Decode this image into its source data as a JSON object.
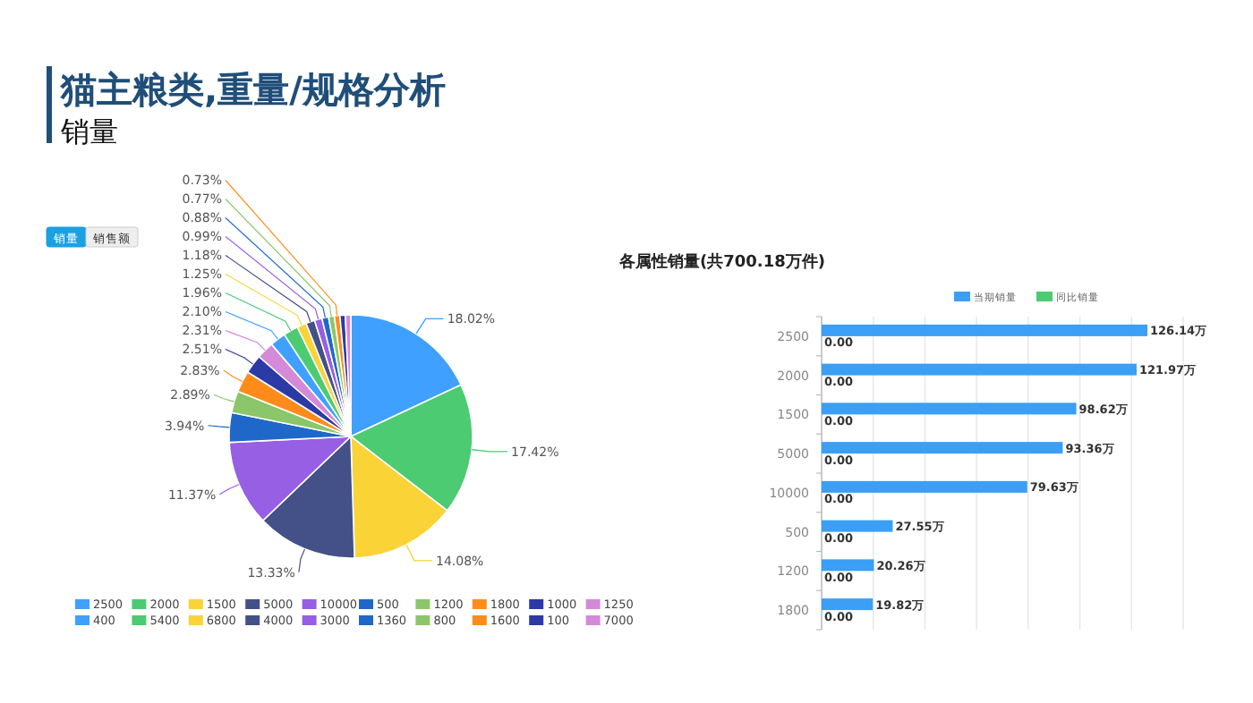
{
  "chart_data": [
    {
      "type": "pie",
      "title": "猫主粮类,重量/规格分析",
      "subtitle": "销量",
      "annotations": [
        "销量",
        "销售额"
      ],
      "legend": "bottom",
      "categories": [
        "2500",
        "2000",
        "1500",
        "5000",
        "10000",
        "500",
        "1200",
        "1800",
        "1000",
        "1250",
        "400",
        "5400",
        "6800",
        "4000",
        "3000",
        "1360",
        "800",
        "1600",
        "100",
        "7000"
      ],
      "values": [
        18.02,
        17.42,
        14.08,
        13.33,
        11.37,
        3.94,
        2.89,
        2.83,
        2.51,
        2.31,
        2.1,
        1.96,
        1.25,
        1.18,
        0.99,
        0.88,
        0.77,
        0.73,
        0.72,
        0.72
      ],
      "value_labels": [
        "18.02%",
        "17.42%",
        "14.08%",
        "13.33%",
        "11.37%",
        "3.94%",
        "2.89%",
        "2.83%",
        "2.51%",
        "2.31%",
        "2.10%",
        "1.96%",
        "1.25%",
        "1.18%",
        "0.99%",
        "0.88%",
        "0.77%",
        "0.73%",
        null,
        null
      ],
      "colors": [
        "#3fa0ff",
        "#4ccb73",
        "#fad337",
        "#435188",
        "#975fe4",
        "#1f68c9",
        "#8bc66a",
        "#ff8c1a",
        "#2c3aa6",
        "#d48ad8",
        "#3fa0ff",
        "#4ccb73",
        "#fad337",
        "#435188",
        "#975fe4",
        "#1f68c9",
        "#8bc66a",
        "#ff8c1a",
        "#2c3aa6",
        "#d48ad8"
      ]
    },
    {
      "type": "bar",
      "orientation": "horizontal",
      "title": "各属性销量(共700.18万件)",
      "legend": "top",
      "grid": "x",
      "tick_labels": "y",
      "categories": [
        "2500",
        "2000",
        "1500",
        "5000",
        "10000",
        "500",
        "1200",
        "1800"
      ],
      "xlim": [
        0,
        140
      ],
      "xticks": [
        {
          "value": 0,
          "label": null
        },
        {
          "value": 20,
          "label": null
        },
        {
          "value": 40,
          "label": null
        },
        {
          "value": 60,
          "label": null
        },
        {
          "value": 80,
          "label": null
        },
        {
          "value": 100,
          "label": null
        },
        {
          "value": 120,
          "label": null
        },
        {
          "value": 140,
          "label": null
        }
      ],
      "series": [
        {
          "name": "当期销量",
          "color": "#3a9ff5",
          "values": [
            126.14,
            121.97,
            98.62,
            93.36,
            79.63,
            27.55,
            20.26,
            19.82
          ],
          "value_labels": [
            "126.14万",
            "121.97万",
            "98.62万",
            "93.36万",
            "79.63万",
            "27.55万",
            "20.26万",
            "19.82万"
          ]
        },
        {
          "name": "同比销量",
          "color": "#4ccb73",
          "values": [
            0,
            0,
            0,
            0,
            0,
            0,
            0,
            0
          ],
          "value_labels": [
            "0.00",
            "0.00",
            "0.00",
            "0.00",
            "0.00",
            "0.00",
            "0.00",
            "0.00"
          ]
        }
      ]
    }
  ]
}
